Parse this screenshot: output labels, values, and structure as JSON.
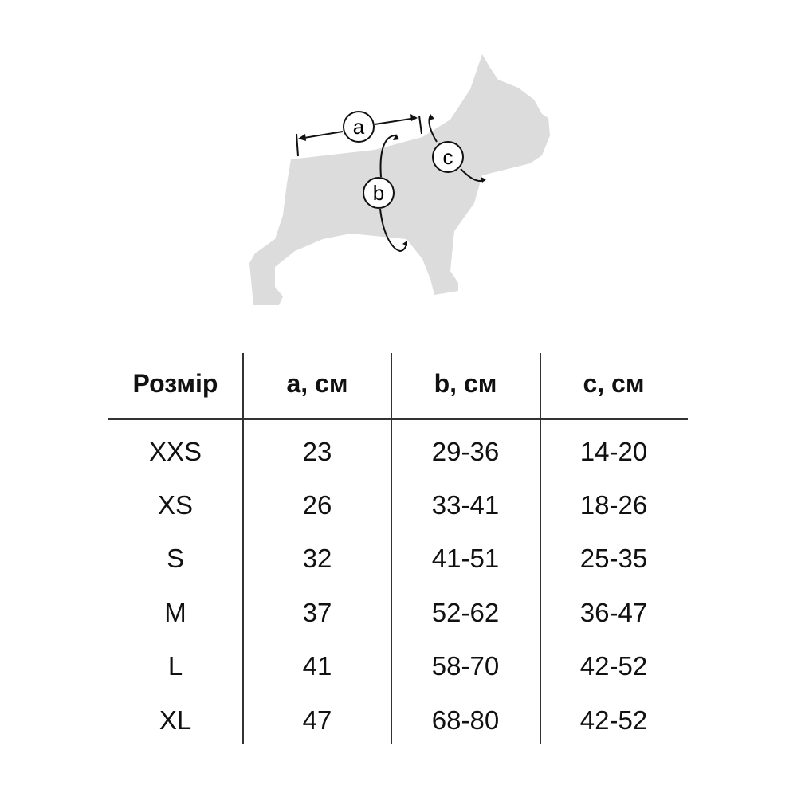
{
  "diagram": {
    "labels": [
      "a",
      "b",
      "c"
    ],
    "silhouette_color": "#dcdcdc",
    "line_color": "#111111"
  },
  "table": {
    "headers": [
      "Розмір",
      "a, см",
      "b, см",
      "c, см"
    ],
    "rows": [
      [
        "XXS",
        "23",
        "29-36",
        "14-20"
      ],
      [
        "XS",
        "26",
        "33-41",
        "18-26"
      ],
      [
        "S",
        "32",
        "41-51",
        "25-35"
      ],
      [
        "M",
        "37",
        "52-62",
        "36-47"
      ],
      [
        "L",
        "41",
        "58-70",
        "42-52"
      ],
      [
        "XL",
        "47",
        "68-80",
        "42-52"
      ]
    ]
  }
}
